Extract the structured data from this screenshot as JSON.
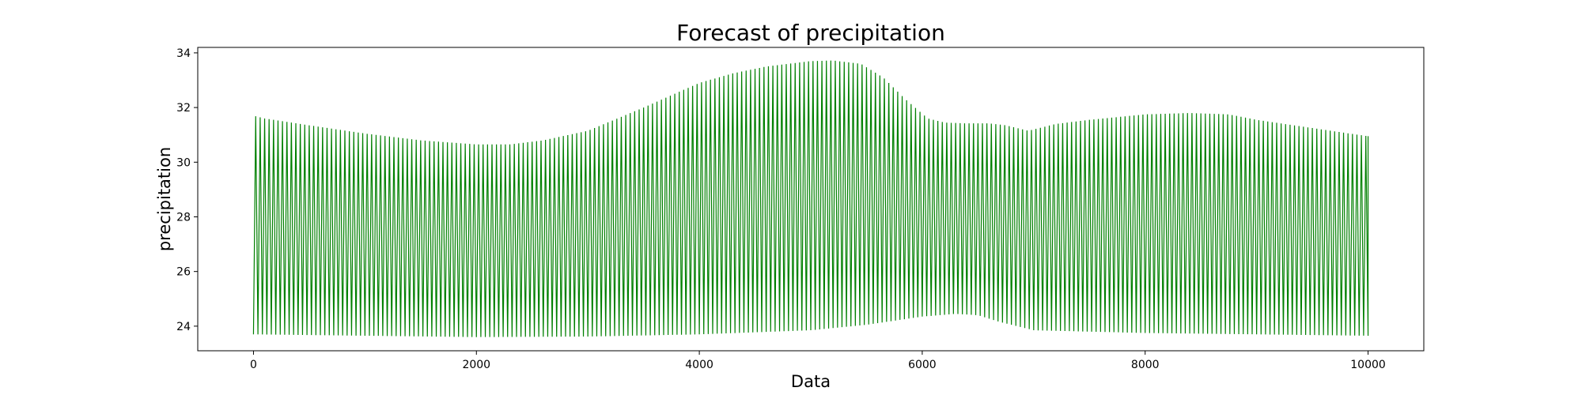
{
  "chart_data": {
    "type": "line",
    "title": "Forecast of precipitation",
    "xlabel": "Data",
    "ylabel": "precipitation",
    "xlim": [
      -500,
      10500
    ],
    "ylim": [
      23.1,
      34.2
    ],
    "x_ticks": [
      0,
      2000,
      4000,
      6000,
      8000,
      10000
    ],
    "y_ticks": [
      24,
      26,
      28,
      30,
      32,
      34
    ],
    "grid": false,
    "legend": "none",
    "oscillation_period": 40,
    "series": [
      {
        "color": "#008000",
        "upper_envelope": {
          "x": [
            0,
            100,
            500,
            1000,
            1500,
            2000,
            2300,
            2600,
            3000,
            3500,
            4000,
            4300,
            4600,
            4800,
            5000,
            5200,
            5450,
            5650,
            5850,
            6050,
            6200,
            6400,
            6600,
            6750,
            6950,
            7200,
            7500,
            8000,
            8400,
            8750,
            9000,
            9500,
            10000
          ],
          "y": [
            31.7,
            31.6,
            31.35,
            31.05,
            30.8,
            30.65,
            30.65,
            30.8,
            31.15,
            32.0,
            32.9,
            33.25,
            33.5,
            33.6,
            33.7,
            33.72,
            33.6,
            33.1,
            32.3,
            31.6,
            31.45,
            31.42,
            31.42,
            31.35,
            31.15,
            31.4,
            31.55,
            31.75,
            31.8,
            31.75,
            31.55,
            31.25,
            30.95
          ]
        },
        "lower_envelope": {
          "x": [
            0,
            1000,
            2000,
            3000,
            4000,
            5000,
            5500,
            6000,
            6300,
            6500,
            6700,
            7000,
            8000,
            9000,
            10000
          ],
          "y": [
            23.7,
            23.65,
            23.6,
            23.62,
            23.7,
            23.85,
            24.05,
            24.35,
            24.45,
            24.4,
            24.15,
            23.85,
            23.75,
            23.7,
            23.65
          ]
        }
      }
    ]
  }
}
